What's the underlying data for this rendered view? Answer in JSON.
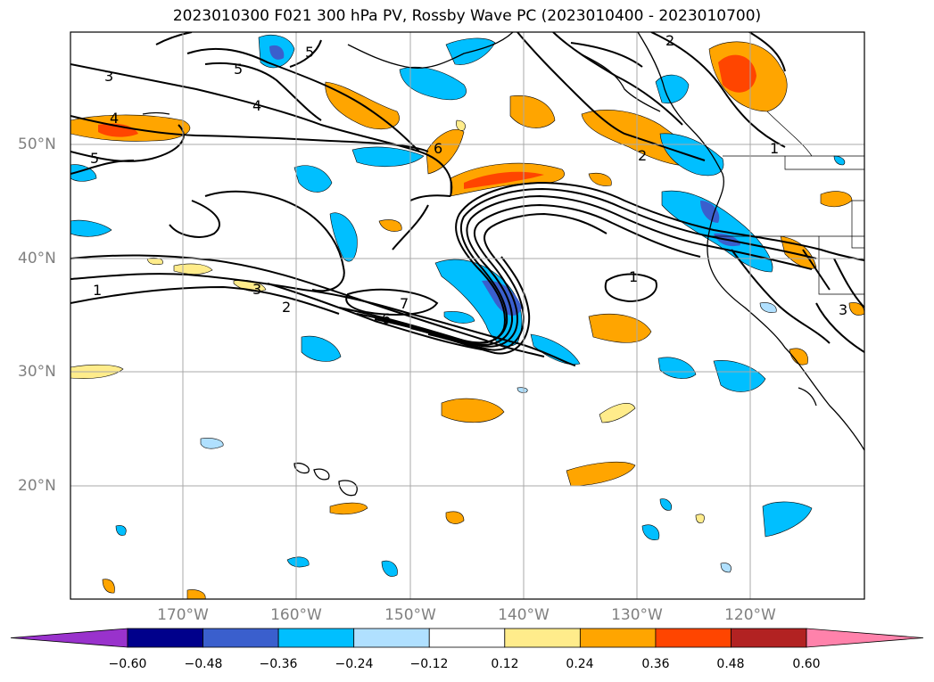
{
  "title": "2023010300 F021 300 hPa PV, Rossby Wave PC (2023010400 - 2023010700)",
  "lat_labels": [
    "50°N",
    "40°N",
    "30°N",
    "20°N"
  ],
  "lon_labels": [
    "170°W",
    "160°W",
    "150°W",
    "140°W",
    "130°W",
    "120°W"
  ],
  "colorbar": {
    "ticks": [
      "−0.60",
      "−0.48",
      "−0.36",
      "−0.24",
      "−0.12",
      "0.12",
      "0.24",
      "0.36",
      "0.48",
      "0.60"
    ],
    "colors": [
      "#9932cc",
      "#00008b",
      "#3a5fcd",
      "#00bfff",
      "#b0e0ff",
      "#ffffff",
      "#ffec8b",
      "#ffa500",
      "#ff4500",
      "#b22222",
      "#ff82ab"
    ]
  },
  "contour_labels": [
    "1",
    "1",
    "1",
    "2",
    "2",
    "2",
    "3",
    "3",
    "3",
    "4",
    "4",
    "5",
    "5",
    "6",
    "6",
    "7",
    "5"
  ]
}
